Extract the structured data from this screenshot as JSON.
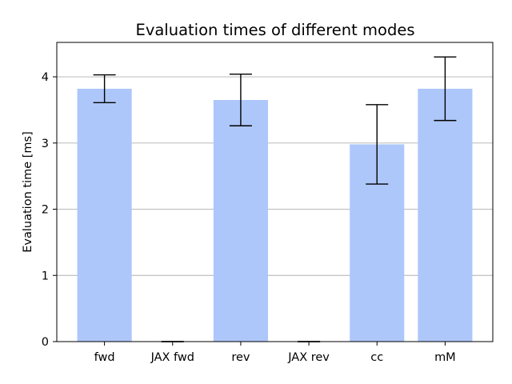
{
  "chart_data": {
    "type": "bar",
    "title": "Evaluation times of different modes",
    "xlabel": "",
    "ylabel": "Evaluation time [ms]",
    "categories": [
      "fwd",
      "JAX fwd",
      "rev",
      "JAX rev",
      "cc",
      "mM"
    ],
    "values": [
      3.82,
      0.0,
      3.65,
      0.0,
      2.98,
      3.82
    ],
    "errors": [
      0.21,
      0.0,
      0.39,
      0.0,
      0.6,
      0.48
    ],
    "ylim": [
      0,
      4.52
    ],
    "yticks": [
      0,
      1,
      2,
      3,
      4
    ],
    "grid": "y",
    "colors": {
      "bar": "#aec7fa",
      "error": "#000000",
      "grid": "#b0b0b0",
      "axis": "#000000"
    }
  }
}
